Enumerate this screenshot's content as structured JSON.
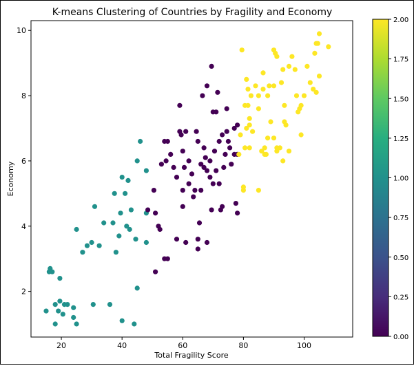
{
  "chart_data": {
    "type": "scatter",
    "title": "K-means Clustering of Countries by Fragility and Economy",
    "xlabel": "Total Fragility Score",
    "ylabel": "Economy",
    "xlim": [
      10,
      116
    ],
    "ylim": [
      0.6,
      10.3
    ],
    "xticks": [
      20,
      40,
      60,
      80,
      100
    ],
    "yticks": [
      2,
      4,
      6,
      8,
      10
    ],
    "grid": false,
    "colormap": "viridis",
    "colorbar": {
      "range": [
        0,
        2
      ],
      "ticks": [
        "0.00",
        "0.25",
        "0.50",
        "0.75",
        "1.00",
        "1.25",
        "1.50",
        "1.75",
        "2.00"
      ]
    },
    "cluster_colors": [
      "#440154",
      "#21918c",
      "#fde725"
    ],
    "points": [
      [
        15,
        1.4,
        1
      ],
      [
        16,
        2.6,
        1
      ],
      [
        16.3,
        2.7,
        1
      ],
      [
        17,
        2.6,
        1
      ],
      [
        18,
        1.6,
        1
      ],
      [
        18,
        1.0,
        1
      ],
      [
        19,
        1.4,
        1
      ],
      [
        19.5,
        1.7,
        1
      ],
      [
        19.5,
        2.4,
        1
      ],
      [
        20.5,
        1.3,
        1
      ],
      [
        21,
        1.6,
        1
      ],
      [
        22,
        1.6,
        1
      ],
      [
        24,
        1.5,
        1
      ],
      [
        24,
        1.2,
        1
      ],
      [
        25,
        1.0,
        1
      ],
      [
        25,
        3.9,
        1
      ],
      [
        27,
        3.2,
        1
      ],
      [
        28.5,
        3.4,
        1
      ],
      [
        30,
        3.5,
        1
      ],
      [
        30.5,
        1.6,
        1
      ],
      [
        31,
        4.6,
        1
      ],
      [
        32.5,
        3.4,
        1
      ],
      [
        34,
        4.1,
        1
      ],
      [
        36,
        1.6,
        1
      ],
      [
        37,
        4.1,
        1
      ],
      [
        37.5,
        5.0,
        1
      ],
      [
        38,
        3.2,
        1
      ],
      [
        39,
        3.7,
        1
      ],
      [
        39.5,
        4.4,
        1
      ],
      [
        40,
        5.5,
        1
      ],
      [
        40,
        1.1,
        1
      ],
      [
        41,
        5.0,
        1
      ],
      [
        41.5,
        4.0,
        1
      ],
      [
        42,
        5.4,
        1
      ],
      [
        42.5,
        3.9,
        1
      ],
      [
        43,
        4.5,
        1
      ],
      [
        44,
        1.0,
        1
      ],
      [
        44.5,
        3.6,
        1
      ],
      [
        45,
        6.0,
        1
      ],
      [
        45,
        2.1,
        1
      ],
      [
        46,
        6.6,
        1
      ],
      [
        48,
        5.7,
        1
      ],
      [
        48,
        3.5,
        1
      ],
      [
        48,
        4.4,
        1
      ],
      [
        48.5,
        4.5,
        0
      ],
      [
        50.5,
        5.1,
        0
      ],
      [
        51,
        4.4,
        0
      ],
      [
        51,
        2.6,
        0
      ],
      [
        52,
        4.0,
        0
      ],
      [
        52.5,
        3.9,
        0
      ],
      [
        53,
        5.9,
        0
      ],
      [
        54,
        6.6,
        0
      ],
      [
        54,
        3.0,
        0
      ],
      [
        54.5,
        6.0,
        0
      ],
      [
        55,
        3.0,
        0
      ],
      [
        55,
        6.6,
        0
      ],
      [
        56,
        6.2,
        0
      ],
      [
        57,
        5.8,
        0
      ],
      [
        58,
        3.6,
        0
      ],
      [
        58,
        5.5,
        0
      ],
      [
        59,
        6.9,
        0
      ],
      [
        59,
        7.7,
        0
      ],
      [
        59.5,
        6.8,
        0
      ],
      [
        60,
        6.3,
        0
      ],
      [
        60,
        5.1,
        0
      ],
      [
        60,
        4.6,
        0
      ],
      [
        60.5,
        5.8,
        0
      ],
      [
        61,
        3.5,
        0
      ],
      [
        61,
        6.9,
        0
      ],
      [
        62,
        6.0,
        0
      ],
      [
        62,
        5.3,
        0
      ],
      [
        63,
        5.6,
        0
      ],
      [
        63.5,
        4.9,
        0
      ],
      [
        64,
        5.1,
        0
      ],
      [
        64.5,
        6.9,
        0
      ],
      [
        65,
        3.3,
        0
      ],
      [
        65,
        6.6,
        0
      ],
      [
        65,
        3.6,
        0
      ],
      [
        65.5,
        4.1,
        0
      ],
      [
        66,
        5.9,
        0
      ],
      [
        66,
        5.1,
        0
      ],
      [
        66.5,
        8.0,
        0
      ],
      [
        67,
        5.8,
        0
      ],
      [
        67,
        6.4,
        0
      ],
      [
        67.5,
        6.1,
        0
      ],
      [
        68,
        5.7,
        0
      ],
      [
        68,
        8.3,
        0
      ],
      [
        68,
        3.5,
        0
      ],
      [
        69,
        5.5,
        0
      ],
      [
        69,
        6.0,
        0
      ],
      [
        69.5,
        8.9,
        0
      ],
      [
        69.5,
        4.5,
        0
      ],
      [
        70,
        7.5,
        0
      ],
      [
        70,
        5.3,
        0
      ],
      [
        70.5,
        6.3,
        0
      ],
      [
        71,
        5.7,
        0
      ],
      [
        71,
        7.5,
        0
      ],
      [
        71.5,
        8.1,
        0
      ],
      [
        72,
        6.6,
        0
      ],
      [
        72,
        5.3,
        0
      ],
      [
        72.5,
        4.5,
        0
      ],
      [
        73,
        6.8,
        0
      ],
      [
        73,
        4.6,
        0
      ],
      [
        73.5,
        5.8,
        0
      ],
      [
        74,
        6.2,
        0
      ],
      [
        74.5,
        6.9,
        0
      ],
      [
        74.5,
        7.6,
        0
      ],
      [
        75,
        6.6,
        0
      ],
      [
        75.5,
        6.4,
        0
      ],
      [
        76,
        5.9,
        0
      ],
      [
        77,
        7.0,
        0
      ],
      [
        77,
        6.2,
        0
      ],
      [
        77.5,
        4.7,
        0
      ],
      [
        78,
        6.2,
        0
      ],
      [
        78,
        4.4,
        0
      ],
      [
        78,
        7.1,
        0
      ],
      [
        78.5,
        6.2,
        2
      ],
      [
        79,
        6.8,
        2
      ],
      [
        79.5,
        9.4,
        2
      ],
      [
        80,
        5.1,
        2
      ],
      [
        80,
        5.2,
        2
      ],
      [
        80.5,
        6.4,
        2
      ],
      [
        80.5,
        7.7,
        2
      ],
      [
        81,
        7.0,
        2
      ],
      [
        81,
        8.5,
        2
      ],
      [
        81.5,
        7.7,
        2
      ],
      [
        81.5,
        8.2,
        2
      ],
      [
        82,
        7.3,
        2
      ],
      [
        82,
        7.1,
        2
      ],
      [
        82,
        6.4,
        2
      ],
      [
        82.5,
        8.0,
        2
      ],
      [
        83,
        6.9,
        2
      ],
      [
        84,
        8.3,
        2
      ],
      [
        85,
        7.6,
        2
      ],
      [
        85,
        5.1,
        2
      ],
      [
        85,
        8.0,
        2
      ],
      [
        86,
        6.3,
        2
      ],
      [
        86.5,
        8.2,
        2
      ],
      [
        86.5,
        8.7,
        2
      ],
      [
        87,
        6.4,
        2
      ],
      [
        87,
        6.2,
        2
      ],
      [
        87.5,
        6.2,
        2
      ],
      [
        88,
        6.7,
        2
      ],
      [
        88,
        8.0,
        2
      ],
      [
        88.5,
        8.3,
        2
      ],
      [
        89,
        7.2,
        2
      ],
      [
        90,
        6.7,
        2
      ],
      [
        90,
        9.4,
        2
      ],
      [
        90,
        8.3,
        2
      ],
      [
        90.5,
        9.3,
        2
      ],
      [
        91,
        6.3,
        2
      ],
      [
        91,
        6.4,
        2
      ],
      [
        91,
        9.2,
        2
      ],
      [
        92,
        6.4,
        2
      ],
      [
        92.5,
        8.4,
        2
      ],
      [
        93,
        6.0,
        2
      ],
      [
        93,
        8.8,
        2
      ],
      [
        93.5,
        7.7,
        2
      ],
      [
        93.5,
        7.2,
        2
      ],
      [
        94,
        7.1,
        2
      ],
      [
        95,
        6.3,
        2
      ],
      [
        95,
        8.9,
        2
      ],
      [
        96,
        9.2,
        2
      ],
      [
        97,
        8.8,
        2
      ],
      [
        97.5,
        8.0,
        2
      ],
      [
        98,
        7.5,
        2
      ],
      [
        98.5,
        7.6,
        2
      ],
      [
        99,
        6.8,
        2
      ],
      [
        99,
        7.7,
        2
      ],
      [
        100,
        8.0,
        2
      ],
      [
        101,
        8.9,
        2
      ],
      [
        102,
        8.4,
        2
      ],
      [
        103,
        8.2,
        2
      ],
      [
        103.5,
        9.3,
        2
      ],
      [
        104,
        9.6,
        2
      ],
      [
        104,
        8.1,
        2
      ],
      [
        104.5,
        9.6,
        2
      ],
      [
        105,
        8.6,
        2
      ],
      [
        105,
        9.9,
        2
      ],
      [
        108,
        9.5,
        2
      ]
    ]
  }
}
